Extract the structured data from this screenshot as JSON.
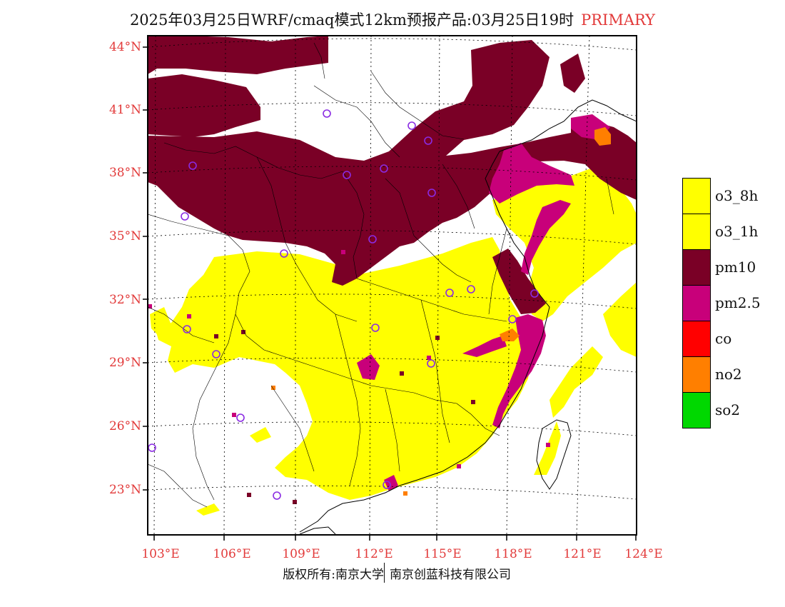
{
  "header": {
    "title": "2025年03月25日WRF/cmaq模式12km预报产品:03月25日19时",
    "tag": "PRIMARY"
  },
  "map": {
    "lat_labels": [
      "44°N",
      "41°N",
      "38°N",
      "35°N",
      "32°N",
      "29°N",
      "26°N",
      "23°N"
    ],
    "lon_labels": [
      "103°E",
      "106°E",
      "109°E",
      "112°E",
      "115°E",
      "118°E",
      "121°E",
      "124°E"
    ],
    "colors": {
      "o3_8h": "#ffff00",
      "o3_1h": "#ffff00",
      "pm10": "#7a0026",
      "pm2_5": "#c8007a",
      "co": "#ff0000",
      "no2": "#ff7f00",
      "so2": "#00d800",
      "station": "#8a2be2"
    }
  },
  "legend": {
    "items": [
      {
        "label": "o3_8h",
        "color": "#ffff00"
      },
      {
        "label": "o3_1h",
        "color": "#ffff00"
      },
      {
        "label": "pm10",
        "color": "#7a0026"
      },
      {
        "label": "pm2.5",
        "color": "#c8007a"
      },
      {
        "label": "co",
        "color": "#ff0000"
      },
      {
        "label": "no2",
        "color": "#ff7f00"
      },
      {
        "label": "so2",
        "color": "#00d800"
      }
    ]
  },
  "footer": {
    "left": "版权所有:南京大学",
    "right": "南京创蓝科技有限公司"
  }
}
